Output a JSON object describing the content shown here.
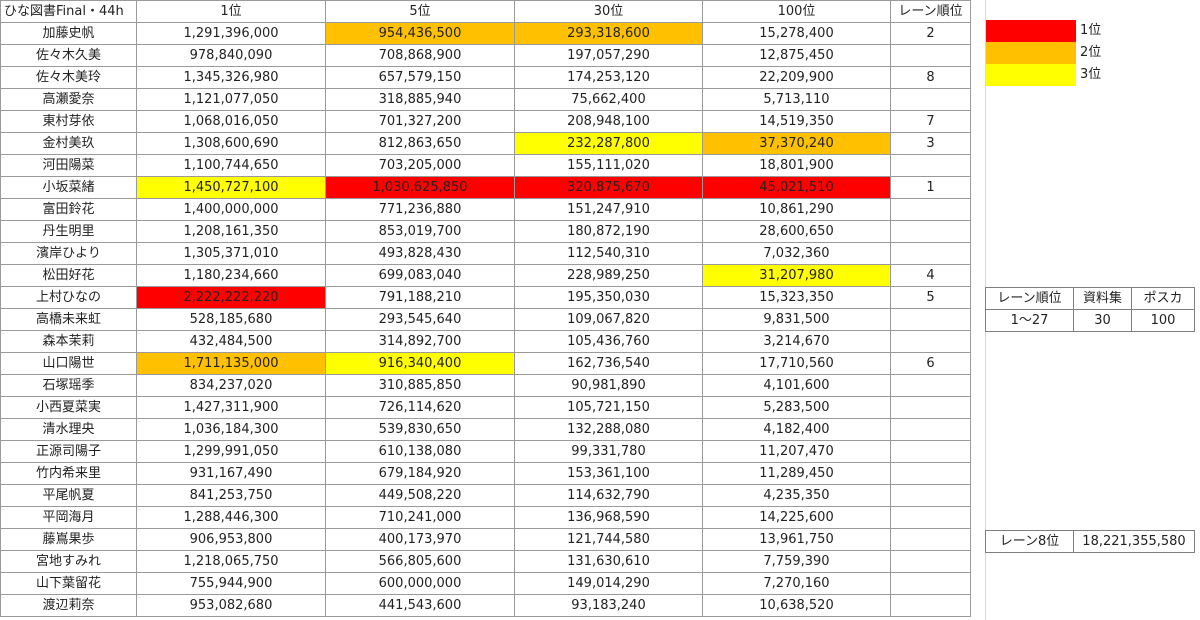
{
  "header": {
    "title": "ひな図書Final・44h",
    "col1": "1位",
    "col5": "5位",
    "col30": "30位",
    "col100": "100位",
    "lane": "レーン順位"
  },
  "colors": {
    "first": "#ff0000",
    "second": "#ffc000",
    "third": "#ffff00"
  },
  "rows": [
    {
      "name": "加藤史帆",
      "v1": "1,291,396,000",
      "v5": "954,436,500",
      "v30": "293,318,600",
      "v100": "15,278,400",
      "lane": "2",
      "c1": "none",
      "c5": "orange",
      "c30": "orange",
      "c100": "none"
    },
    {
      "name": "佐々木久美",
      "v1": "978,840,090",
      "v5": "708,868,900",
      "v30": "197,057,290",
      "v100": "12,875,450",
      "lane": "",
      "c1": "none",
      "c5": "none",
      "c30": "none",
      "c100": "none"
    },
    {
      "name": "佐々木美玲",
      "v1": "1,345,326,980",
      "v5": "657,579,150",
      "v30": "174,253,120",
      "v100": "22,209,900",
      "lane": "8",
      "c1": "none",
      "c5": "none",
      "c30": "none",
      "c100": "none"
    },
    {
      "name": "高瀬愛奈",
      "v1": "1,121,077,050",
      "v5": "318,885,940",
      "v30": "75,662,400",
      "v100": "5,713,110",
      "lane": "",
      "c1": "none",
      "c5": "none",
      "c30": "none",
      "c100": "none"
    },
    {
      "name": "東村芽依",
      "v1": "1,068,016,050",
      "v5": "701,327,200",
      "v30": "208,948,100",
      "v100": "14,519,350",
      "lane": "7",
      "c1": "none",
      "c5": "none",
      "c30": "none",
      "c100": "none"
    },
    {
      "name": "金村美玖",
      "v1": "1,308,600,690",
      "v5": "812,863,650",
      "v30": "232,287,800",
      "v100": "37,370,240",
      "lane": "3",
      "c1": "none",
      "c5": "none",
      "c30": "yellow",
      "c100": "orange"
    },
    {
      "name": "河田陽菜",
      "v1": "1,100,744,650",
      "v5": "703,205,000",
      "v30": "155,111,020",
      "v100": "18,801,900",
      "lane": "",
      "c1": "none",
      "c5": "none",
      "c30": "none",
      "c100": "none"
    },
    {
      "name": "小坂菜緒",
      "v1": "1,450,727,100",
      "v5": "1,030,625,850",
      "v30": "320,875,670",
      "v100": "45,021,510",
      "lane": "1",
      "c1": "yellow",
      "c5": "red",
      "c30": "red",
      "c100": "red"
    },
    {
      "name": "富田鈴花",
      "v1": "1,400,000,000",
      "v5": "771,236,880",
      "v30": "151,247,910",
      "v100": "10,861,290",
      "lane": "",
      "c1": "none",
      "c5": "none",
      "c30": "none",
      "c100": "none"
    },
    {
      "name": "丹生明里",
      "v1": "1,208,161,350",
      "v5": "853,019,700",
      "v30": "180,872,190",
      "v100": "28,600,650",
      "lane": "",
      "c1": "none",
      "c5": "none",
      "c30": "none",
      "c100": "none"
    },
    {
      "name": "濱岸ひより",
      "v1": "1,305,371,010",
      "v5": "493,828,430",
      "v30": "112,540,310",
      "v100": "7,032,360",
      "lane": "",
      "c1": "none",
      "c5": "none",
      "c30": "none",
      "c100": "none"
    },
    {
      "name": "松田好花",
      "v1": "1,180,234,660",
      "v5": "699,083,040",
      "v30": "228,989,250",
      "v100": "31,207,980",
      "lane": "4",
      "c1": "none",
      "c5": "none",
      "c30": "none",
      "c100": "yellow"
    },
    {
      "name": "上村ひなの",
      "v1": "2,222,222,220",
      "v5": "791,188,210",
      "v30": "195,350,030",
      "v100": "15,323,350",
      "lane": "5",
      "c1": "red",
      "c5": "none",
      "c30": "none",
      "c100": "none"
    },
    {
      "name": "高橋未来虹",
      "v1": "528,185,680",
      "v5": "293,545,640",
      "v30": "109,067,820",
      "v100": "9,831,500",
      "lane": "",
      "c1": "none",
      "c5": "none",
      "c30": "none",
      "c100": "none"
    },
    {
      "name": "森本茉莉",
      "v1": "432,484,500",
      "v5": "314,892,700",
      "v30": "105,436,760",
      "v100": "3,214,670",
      "lane": "",
      "c1": "none",
      "c5": "none",
      "c30": "none",
      "c100": "none"
    },
    {
      "name": "山口陽世",
      "v1": "1,711,135,000",
      "v5": "916,340,400",
      "v30": "162,736,540",
      "v100": "17,710,560",
      "lane": "6",
      "c1": "orange",
      "c5": "yellow",
      "c30": "none",
      "c100": "none"
    },
    {
      "name": "石塚瑶季",
      "v1": "834,237,020",
      "v5": "310,885,850",
      "v30": "90,981,890",
      "v100": "4,101,600",
      "lane": "",
      "c1": "none",
      "c5": "none",
      "c30": "none",
      "c100": "none"
    },
    {
      "name": "小西夏菜実",
      "v1": "1,427,311,900",
      "v5": "726,114,620",
      "v30": "105,721,150",
      "v100": "5,283,500",
      "lane": "",
      "c1": "none",
      "c5": "none",
      "c30": "none",
      "c100": "none"
    },
    {
      "name": "清水理央",
      "v1": "1,036,184,300",
      "v5": "539,830,650",
      "v30": "132,288,080",
      "v100": "4,182,400",
      "lane": "",
      "c1": "none",
      "c5": "none",
      "c30": "none",
      "c100": "none"
    },
    {
      "name": "正源司陽子",
      "v1": "1,299,991,050",
      "v5": "610,138,080",
      "v30": "99,331,780",
      "v100": "11,207,470",
      "lane": "",
      "c1": "none",
      "c5": "none",
      "c30": "none",
      "c100": "none"
    },
    {
      "name": "竹内希来里",
      "v1": "931,167,490",
      "v5": "679,184,920",
      "v30": "153,361,100",
      "v100": "11,289,450",
      "lane": "",
      "c1": "none",
      "c5": "none",
      "c30": "none",
      "c100": "none"
    },
    {
      "name": "平尾帆夏",
      "v1": "841,253,750",
      "v5": "449,508,220",
      "v30": "114,632,790",
      "v100": "4,235,350",
      "lane": "",
      "c1": "none",
      "c5": "none",
      "c30": "none",
      "c100": "none"
    },
    {
      "name": "平岡海月",
      "v1": "1,288,446,300",
      "v5": "710,241,000",
      "v30": "136,968,590",
      "v100": "14,225,600",
      "lane": "",
      "c1": "none",
      "c5": "none",
      "c30": "none",
      "c100": "none"
    },
    {
      "name": "藤嶌果歩",
      "v1": "906,953,800",
      "v5": "400,173,970",
      "v30": "121,744,580",
      "v100": "13,961,750",
      "lane": "",
      "c1": "none",
      "c5": "none",
      "c30": "none",
      "c100": "none"
    },
    {
      "name": "宮地すみれ",
      "v1": "1,218,065,750",
      "v5": "566,805,600",
      "v30": "131,630,610",
      "v100": "7,759,390",
      "lane": "",
      "c1": "none",
      "c5": "none",
      "c30": "none",
      "c100": "none"
    },
    {
      "name": "山下葉留花",
      "v1": "755,944,900",
      "v5": "600,000,000",
      "v30": "149,014,290",
      "v100": "7,270,160",
      "lane": "",
      "c1": "none",
      "c5": "none",
      "c30": "none",
      "c100": "none"
    },
    {
      "name": "渡辺莉奈",
      "v1": "953,082,680",
      "v5": "441,543,600",
      "v30": "93,183,240",
      "v100": "10,638,520",
      "lane": "",
      "c1": "none",
      "c5": "none",
      "c30": "none",
      "c100": "none"
    }
  ],
  "legend": [
    {
      "label": "1位",
      "color": "red"
    },
    {
      "label": "2位",
      "color": "orange"
    },
    {
      "label": "3位",
      "color": "yellow"
    }
  ],
  "side_table": {
    "headers": [
      "レーン順位",
      "資料集",
      "ポスカ"
    ],
    "values": [
      "1〜27",
      "30",
      "100"
    ]
  },
  "lane8": {
    "label": "レーン8位",
    "value": "18,221,355,580"
  }
}
